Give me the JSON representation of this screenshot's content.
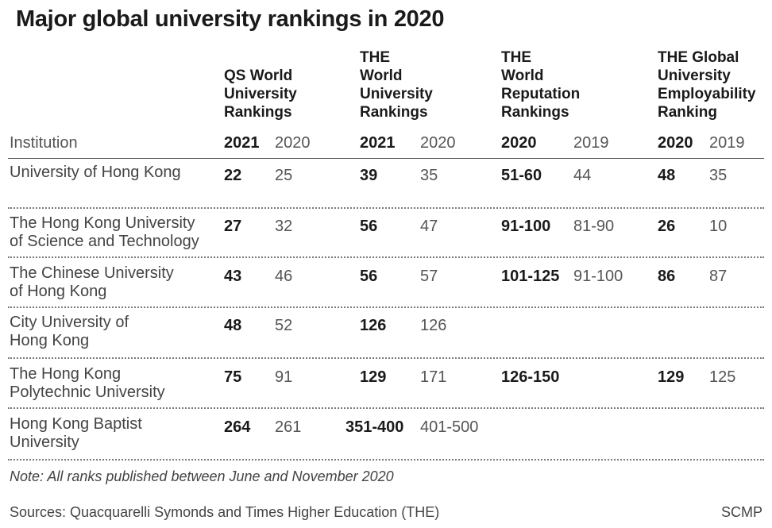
{
  "title": "Major global university rankings in 2020",
  "sources": [
    {
      "name": "QS World\nUniversity\nRankings",
      "years": [
        "2021",
        "2020"
      ]
    },
    {
      "name": "THE\nWorld\nUniversity\nRankings",
      "years": [
        "2021",
        "2020"
      ]
    },
    {
      "name": "THE\nWorld\nReputation\nRankings",
      "years": [
        "2020",
        "2019"
      ]
    },
    {
      "name": "THE Global\nUniversity\nEmployability\nRanking",
      "years": [
        "2020",
        "2019"
      ]
    }
  ],
  "institution_header": "Institution",
  "rows": [
    {
      "institution": "University of Hong Kong",
      "ranks": [
        "22",
        "25",
        "39",
        "35",
        "51-60",
        "44",
        "48",
        "35"
      ]
    },
    {
      "institution": "The Hong Kong University\nof Science and Technology",
      "ranks": [
        "27",
        "32",
        "56",
        "47",
        "91-100",
        "81-90",
        "26",
        "10"
      ]
    },
    {
      "institution": "The Chinese University\nof Hong Kong",
      "ranks": [
        "43",
        "46",
        "56",
        "57",
        "101-125",
        "91-100",
        "86",
        "87"
      ]
    },
    {
      "institution": "City University of\nHong Kong",
      "ranks": [
        "48",
        "52",
        "126",
        "126",
        "",
        "",
        "",
        ""
      ]
    },
    {
      "institution": "The Hong Kong\nPolytechnic University",
      "ranks": [
        "75",
        "91",
        "129",
        "171",
        "126-150",
        "",
        "129",
        "125"
      ]
    },
    {
      "institution": "Hong Kong Baptist\nUniversity",
      "ranks": [
        "264",
        "261",
        "351-400",
        "401-500",
        "",
        "",
        "",
        ""
      ]
    }
  ],
  "note": "Note: All ranks published between June and November 2020",
  "sources_line": "Sources: Quacquarelli Symonds and Times Higher Education (THE)",
  "credit": "SCMP"
}
